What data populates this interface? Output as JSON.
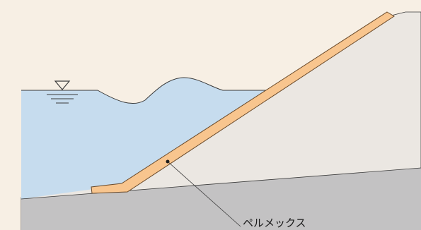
{
  "labels": {
    "material": "ペルメックス"
  },
  "colors": {
    "background": "#f7efe4",
    "water": "#c6dcee",
    "embankment": "#ebe7e2",
    "ground": "#c3c2c3",
    "revetment_fill": "#f8c58e",
    "revetment_stroke": "#6a4a2a",
    "line": "#3a3a3a"
  },
  "icons": {
    "water_level": "water-level-triangle-icon"
  }
}
